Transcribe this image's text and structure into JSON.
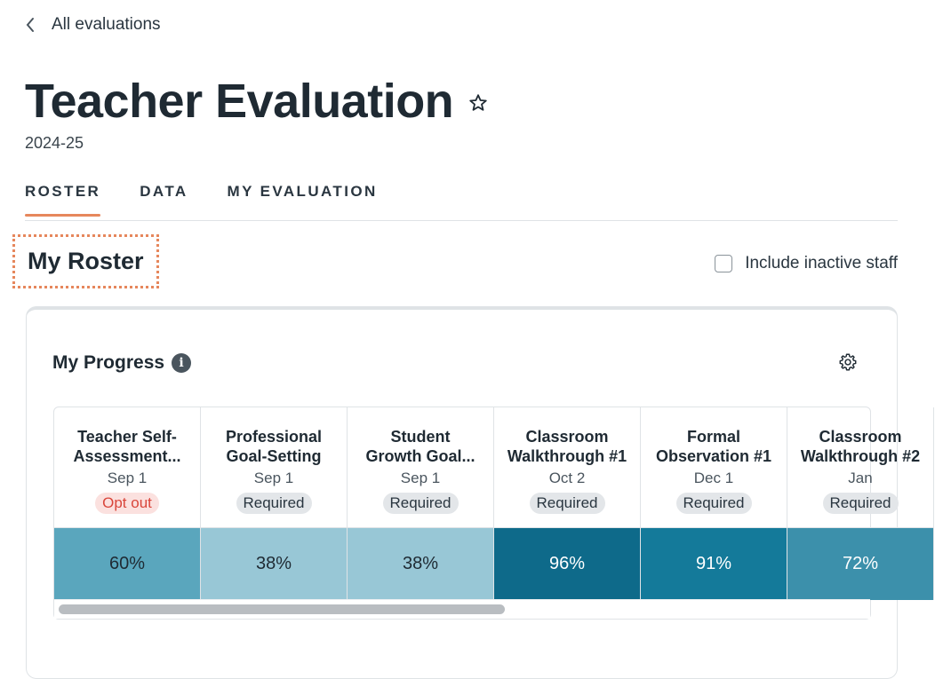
{
  "nav": {
    "back_label": "All evaluations"
  },
  "header": {
    "title": "Teacher Evaluation",
    "year": "2024-25"
  },
  "tabs": [
    {
      "label": "ROSTER",
      "active": true
    },
    {
      "label": "DATA",
      "active": false
    },
    {
      "label": "MY EVALUATION",
      "active": false
    }
  ],
  "roster": {
    "heading": "My Roster",
    "inactive_label": "Include inactive staff",
    "inactive_checked": false
  },
  "progress": {
    "title": "My Progress",
    "columns": [
      {
        "line1": "Teacher Self-",
        "line2": "Assessment...",
        "date": "Sep 1",
        "status": "Opt out",
        "value": "60%",
        "bg": "#5aa6bd",
        "fg": "#1f2a33"
      },
      {
        "line1": "Professional",
        "line2": "Goal-Setting",
        "date": "Sep 1",
        "status": "Required",
        "value": "38%",
        "bg": "#98c7d6",
        "fg": "#1f2a33"
      },
      {
        "line1": "Student",
        "line2": "Growth Goal...",
        "date": "Sep 1",
        "status": "Required",
        "value": "38%",
        "bg": "#98c7d6",
        "fg": "#1f2a33"
      },
      {
        "line1": "Classroom",
        "line2": "Walkthrough #1",
        "date": "Oct 2",
        "status": "Required",
        "value": "96%",
        "bg": "#0e6a8a",
        "fg": "#ffffff"
      },
      {
        "line1": "Formal",
        "line2": "Observation #1",
        "date": "Dec 1",
        "status": "Required",
        "value": "91%",
        "bg": "#147a9a",
        "fg": "#ffffff"
      },
      {
        "line1": "Classroom",
        "line2": "Walkthrough #2",
        "date": "Jan",
        "status": "Required",
        "value": "72%",
        "bg": "#3c90ab",
        "fg": "#ffffff"
      }
    ]
  }
}
